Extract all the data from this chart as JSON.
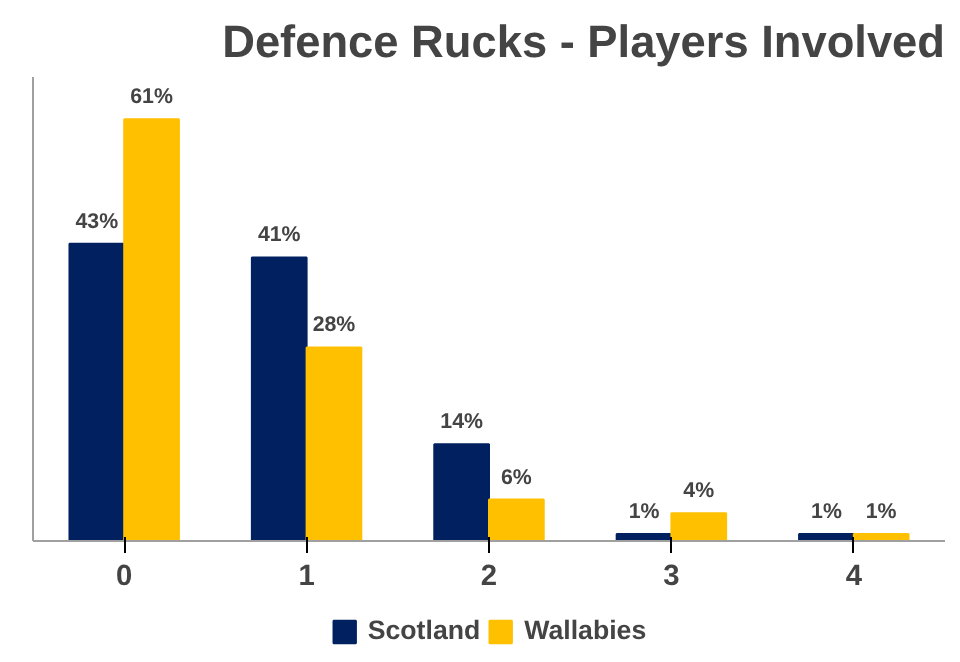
{
  "chart_data": {
    "type": "bar",
    "title": "Defence Rucks - Players Involved",
    "categories": [
      "0",
      "1",
      "2",
      "3",
      "4"
    ],
    "series": [
      {
        "name": "Scotland",
        "color": "#002060",
        "values": [
          43,
          41,
          14,
          1,
          1
        ],
        "value_labels": [
          "43%",
          "41%",
          "14%",
          "1%",
          "1%"
        ]
      },
      {
        "name": "Wallabies",
        "color": "#ffc000",
        "values": [
          61,
          28,
          6,
          4,
          1
        ],
        "value_labels": [
          "61%",
          "28%",
          "6%",
          "4%",
          "1%"
        ]
      }
    ],
    "tick_labels": "x",
    "legend": "bottom"
  }
}
